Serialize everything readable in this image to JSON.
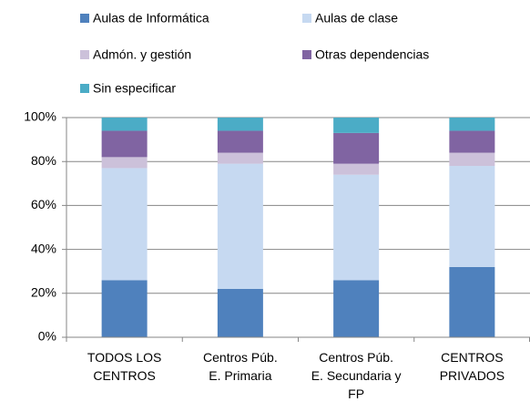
{
  "chart_data": {
    "type": "stacked_bar",
    "categories": [
      "TODOS LOS\nCENTROS",
      "Centros Púb.\nE. Primaria",
      "Centros Púb.\nE. Secundaria y\nFP",
      "CENTROS\nPRIVADOS"
    ],
    "series": [
      {
        "name": "Aulas de Informática",
        "color": "#4f81bd",
        "values": [
          26,
          22,
          26,
          32
        ]
      },
      {
        "name": "Aulas de clase",
        "color": "#c6d9f1",
        "values": [
          51,
          57,
          48,
          46
        ]
      },
      {
        "name": "Admón. y gestión",
        "color": "#ccc1da",
        "values": [
          5,
          5,
          5,
          6
        ]
      },
      {
        "name": "Otras dependencias",
        "color": "#8064a2",
        "values": [
          12,
          10,
          14,
          10
        ]
      },
      {
        "name": "Sin especificar",
        "color": "#4bacc6",
        "values": [
          6,
          6,
          7,
          6
        ]
      }
    ],
    "ylim": [
      0,
      100
    ],
    "yticks": [
      {
        "value": 0,
        "label": "0%"
      },
      {
        "value": 20,
        "label": "20%"
      },
      {
        "value": 40,
        "label": "40%"
      },
      {
        "value": 60,
        "label": "60%"
      },
      {
        "value": 80,
        "label": "80%"
      },
      {
        "value": 100,
        "label": "100%"
      }
    ],
    "grid": true,
    "legend": "top"
  }
}
